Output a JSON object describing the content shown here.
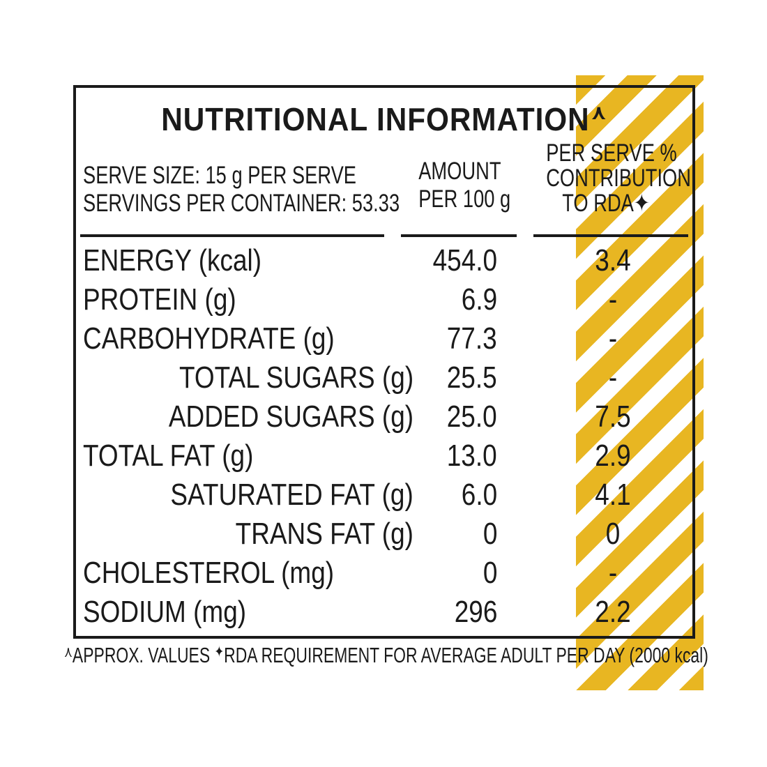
{
  "title": "NUTRITIONAL INFORMATION",
  "title_mark": "⋏",
  "header": {
    "serve_size": "SERVE SIZE: 15 g PER SERVE",
    "servings": "SERVINGS PER CONTAINER: 53.33",
    "amount_line1": "AMOUNT",
    "amount_line2": "PER 100 g",
    "rda_line1": "PER SERVE %",
    "rda_line2": "CONTRIBUTION",
    "rda_line3": "TO RDA✦"
  },
  "rows": [
    {
      "label": "ENERGY (kcal)",
      "amount": "454.0",
      "rda": "3.4"
    },
    {
      "label": "PROTEIN (g)",
      "amount": "6.9",
      "rda": "-"
    },
    {
      "label": "CARBOHYDRATE (g)",
      "amount": "77.3",
      "rda": "-"
    },
    {
      "label": "TOTAL SUGARS (g)",
      "amount": "25.5",
      "rda": "-"
    },
    {
      "label": "ADDED SUGARS (g)",
      "amount": "25.0",
      "rda": "7.5"
    },
    {
      "label": "TOTAL FAT (g)",
      "amount": "13.0",
      "rda": "2.9"
    },
    {
      "label": "SATURATED FAT (g)",
      "amount": "6.0",
      "rda": "4.1"
    },
    {
      "label": "TRANS FAT (g)",
      "amount": "0",
      "rda": "0"
    },
    {
      "label": "CHOLESTEROL (mg)",
      "amount": "0",
      "rda": "-"
    },
    {
      "label": "SODIUM (mg)",
      "amount": "296",
      "rda": "2.2"
    }
  ],
  "footnote": {
    "approx_mark": "⋏",
    "approx_text": "APPROX. VALUES",
    "rda_mark": "✦",
    "rda_text": "RDA REQUIREMENT FOR AVERAGE ADULT PER DAY (2000 kcal)"
  },
  "colors": {
    "accent_stripe": "#e8b622",
    "text": "#1a1a1a"
  }
}
